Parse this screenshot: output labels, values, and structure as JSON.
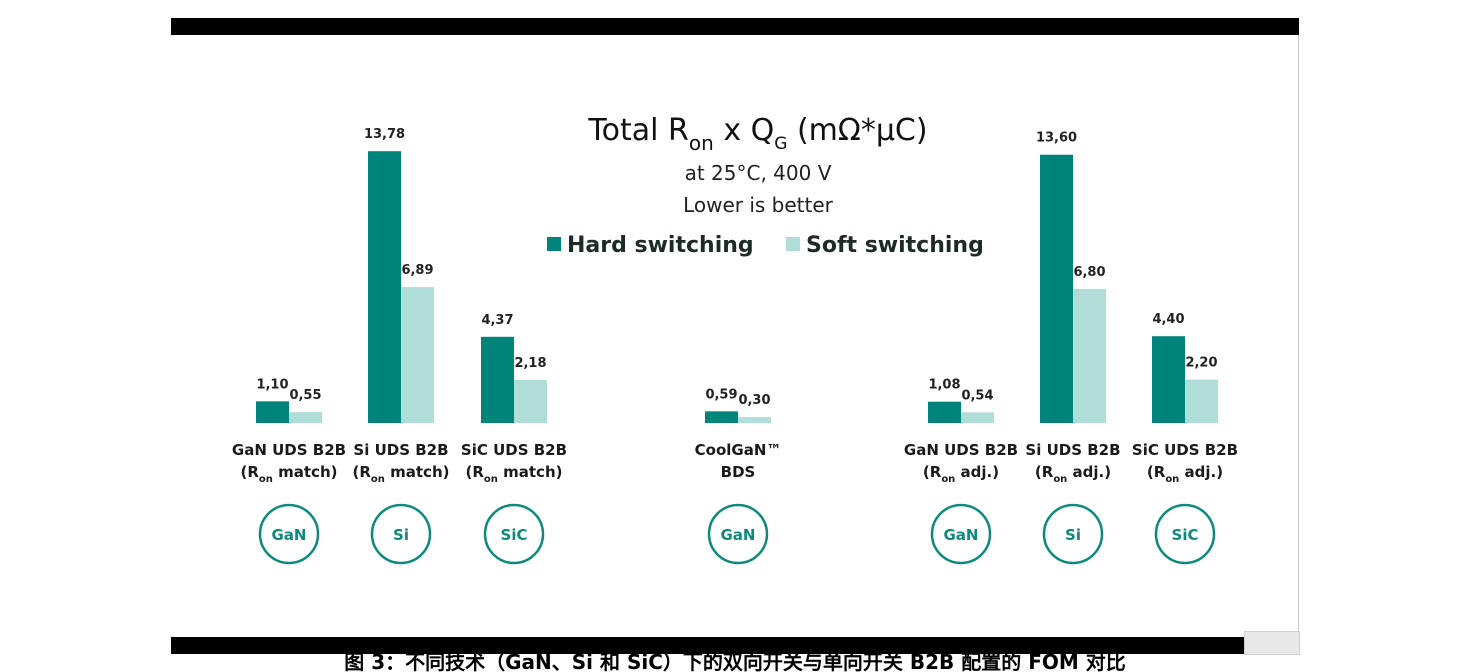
{
  "chart_data": {
    "type": "bar",
    "title": "Total R",
    "title_sub1": "on",
    "title_mid": " x Q",
    "title_sub2": "G",
    "title_end": " (mΩ*µC)",
    "subtitle_lines": [
      "at 25°C, 400 V",
      "Lower is better"
    ],
    "colors": {
      "hard": "#00847a",
      "soft": "#b0ddd8",
      "badge": "#0c8a7a"
    },
    "series": [
      {
        "name": "Hard switching",
        "values": [
          1.1,
          13.78,
          4.37,
          0.59,
          1.08,
          13.6,
          4.4
        ]
      },
      {
        "name": "Soft switching",
        "values": [
          0.55,
          6.89,
          2.18,
          0.3,
          0.54,
          6.8,
          2.2
        ]
      }
    ],
    "value_labels": {
      "hard": [
        "1,10",
        "13,78",
        "4,37",
        "0,59",
        "1,08",
        "13,60",
        "4,40"
      ],
      "soft": [
        "0,55",
        "6,89",
        "2,18",
        "0,30",
        "0,54",
        "6,80",
        "2,20"
      ]
    },
    "categories": [
      {
        "line1": "GaN UDS B2B",
        "pre": "(R",
        "sub": "on",
        "post": " match)",
        "badge": "GaN"
      },
      {
        "line1": "Si UDS B2B",
        "pre": "(R",
        "sub": "on",
        "post": " match)",
        "badge": "Si"
      },
      {
        "line1": "SiC UDS B2B",
        "pre": "(R",
        "sub": "on",
        "post": " match)",
        "badge": "SiC"
      },
      {
        "line1": "CoolGaN™",
        "pre": "BDS",
        "sub": "",
        "post": "",
        "badge": "GaN"
      },
      {
        "line1": "GaN UDS B2B",
        "pre": "(R",
        "sub": "on",
        "post": " adj.)",
        "badge": "GaN"
      },
      {
        "line1": "Si UDS B2B",
        "pre": "(R",
        "sub": "on",
        "post": " adj.)",
        "badge": "Si"
      },
      {
        "line1": "SiC UDS B2B",
        "pre": "(R",
        "sub": "on",
        "post": " adj.)",
        "badge": "SiC"
      }
    ],
    "ylim": [
      0,
      14
    ],
    "grid": false,
    "legend_position": "top-center"
  },
  "caption": "图 3：不同技术（GaN、Si 和 SiC）下的双向开关与单向开关 B2B 配置的 FOM 对比"
}
